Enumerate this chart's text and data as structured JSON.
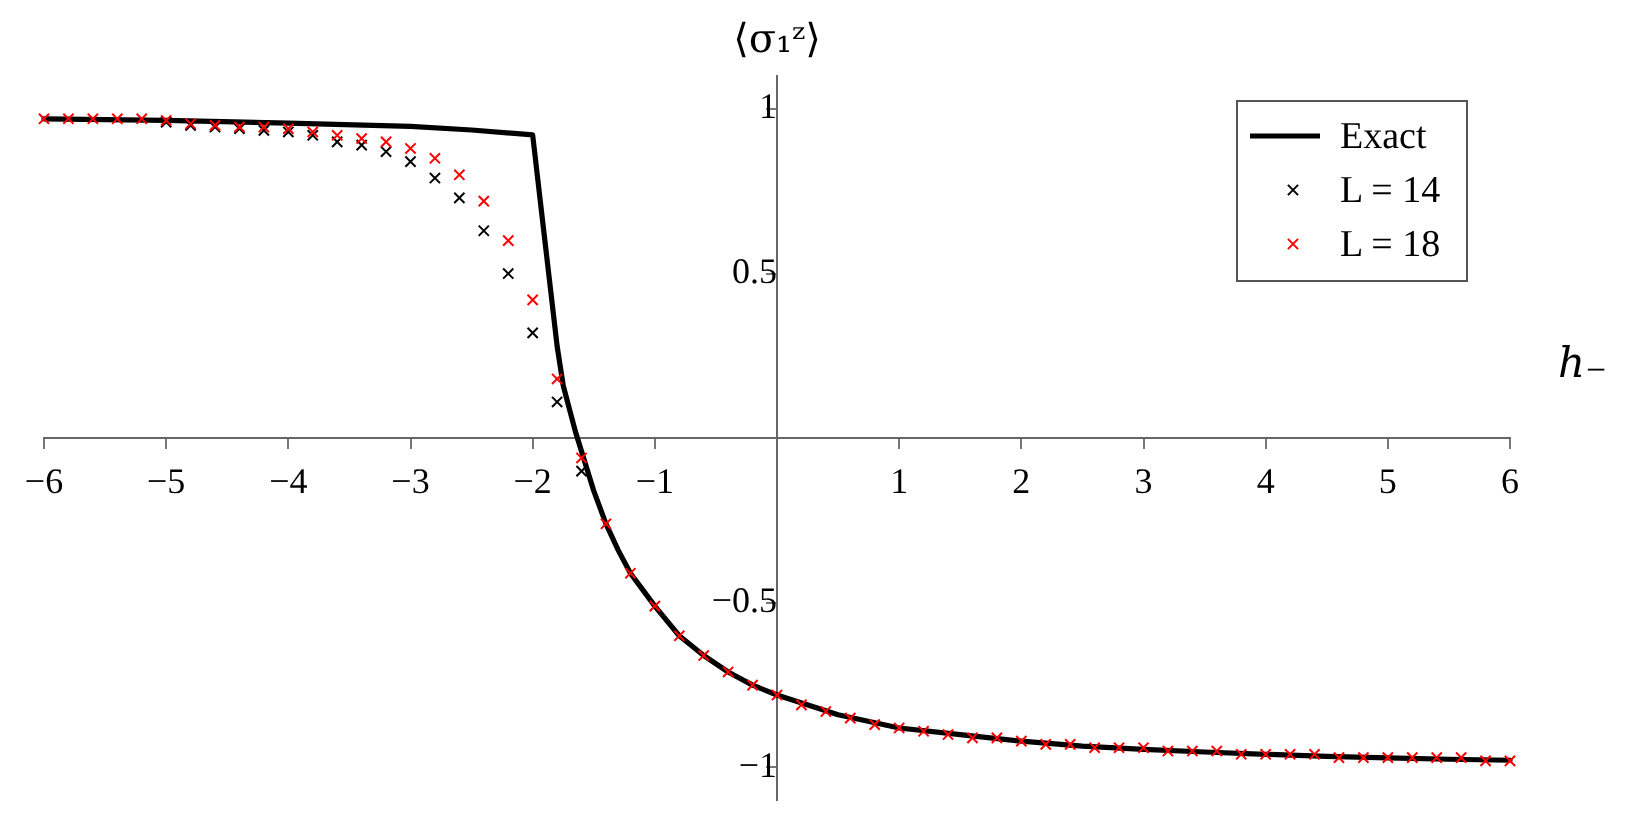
{
  "chart_data": {
    "type": "scatter",
    "xlabel": "h₋",
    "ylabel": "⟨σ₁ᶻ⟩",
    "xlim": [
      -6,
      6
    ],
    "ylim": [
      -1.1,
      1.1
    ],
    "xticks": [
      -6,
      -5,
      -4,
      -3,
      -2,
      -1,
      1,
      2,
      3,
      4,
      5,
      6
    ],
    "yticks": [
      -1,
      -0.5,
      0.5,
      1
    ],
    "grid": false,
    "legend": "top right",
    "marker": "cross",
    "x": [
      -6,
      -5.8,
      -5.6,
      -5.4,
      -5.2,
      -5,
      -4.8,
      -4.6,
      -4.4,
      -4.2,
      -4,
      -3.8,
      -3.6,
      -3.4,
      -3.2,
      -3,
      -2.8,
      -2.6,
      -2.4,
      -2.2,
      -2,
      -1.8,
      -1.6,
      -1.4,
      -1.2,
      -1,
      -0.8,
      -0.6,
      -0.4,
      -0.2,
      0,
      0.2,
      0.4,
      0.6,
      0.8,
      1,
      1.2,
      1.4,
      1.6,
      1.8,
      2,
      2.2,
      2.4,
      2.6,
      2.8,
      3,
      3.2,
      3.4,
      3.6,
      3.8,
      4,
      4.2,
      4.4,
      4.6,
      4.8,
      5,
      5.2,
      5.4,
      5.6,
      5.8,
      6
    ],
    "series": [
      {
        "name": "Exact",
        "type": "line",
        "color": "#000000",
        "marker": "none",
        "line_style": "solid",
        "x": [
          -6,
          -5,
          -4,
          -3,
          -2.5,
          -2,
          -1.95,
          -1.9,
          -1.85,
          -1.8,
          -1.75,
          -1.7,
          -1.65,
          -1.6,
          -1.5,
          -1.4,
          -1.3,
          -1.2,
          -1.1,
          -1,
          -0.8,
          -0.6,
          -0.4,
          -0.2,
          0,
          0.5,
          1,
          1.5,
          2,
          2.5,
          3,
          3.5,
          4,
          4.5,
          5,
          5.5,
          6
        ],
        "values": [
          0.97,
          0.965,
          0.957,
          0.947,
          0.936,
          0.921,
          0.76,
          0.6,
          0.44,
          0.28,
          0.16,
          0.09,
          0.02,
          -0.04,
          -0.16,
          -0.26,
          -0.34,
          -0.41,
          -0.46,
          -0.51,
          -0.6,
          -0.66,
          -0.71,
          -0.75,
          -0.78,
          -0.84,
          -0.88,
          -0.9,
          -0.92,
          -0.935,
          -0.945,
          -0.953,
          -0.96,
          -0.966,
          -0.971,
          -0.975,
          -0.978
        ]
      },
      {
        "name": "L = 14",
        "color": "#000000",
        "values": [
          null,
          null,
          null,
          null,
          null,
          0.96,
          0.95,
          0.945,
          0.94,
          0.935,
          0.93,
          0.92,
          0.9,
          0.89,
          0.87,
          0.84,
          0.79,
          0.73,
          0.63,
          0.5,
          0.32,
          0.11,
          -0.1,
          null,
          null,
          null,
          null,
          null,
          null,
          null,
          null,
          null,
          null,
          null,
          null,
          null,
          null,
          null,
          null,
          null,
          null,
          null,
          null,
          null,
          null,
          null,
          null,
          null,
          null,
          null,
          null,
          null,
          null,
          null,
          null,
          null,
          null,
          null,
          null,
          null,
          null
        ]
      },
      {
        "name": "L = 18",
        "color": "#ff0000",
        "values": [
          0.97,
          0.97,
          0.97,
          0.97,
          0.97,
          0.965,
          0.955,
          0.95,
          0.945,
          0.945,
          0.94,
          0.93,
          0.92,
          0.91,
          0.9,
          0.88,
          0.85,
          0.8,
          0.72,
          0.6,
          0.42,
          0.18,
          -0.06,
          -0.26,
          -0.41,
          -0.51,
          -0.6,
          -0.66,
          -0.71,
          -0.75,
          -0.78,
          -0.81,
          -0.83,
          -0.85,
          -0.87,
          -0.88,
          -0.89,
          -0.9,
          -0.91,
          -0.91,
          -0.92,
          -0.93,
          -0.93,
          -0.94,
          -0.94,
          -0.94,
          -0.95,
          -0.95,
          -0.95,
          -0.96,
          -0.96,
          -0.96,
          -0.96,
          -0.97,
          -0.97,
          -0.97,
          -0.97,
          -0.97,
          -0.97,
          -0.98,
          -0.98
        ]
      }
    ]
  }
}
